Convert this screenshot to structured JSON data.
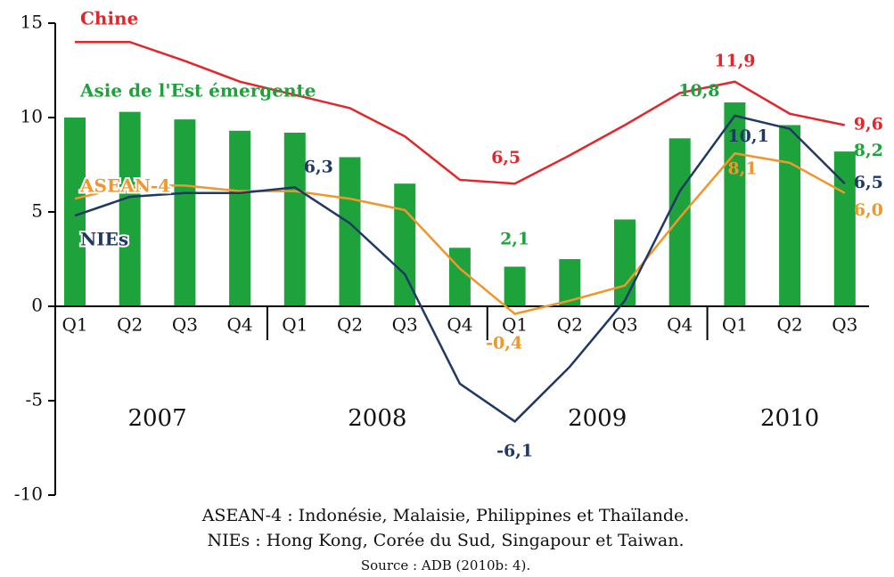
{
  "chart_data": {
    "type": "bar-line",
    "categories": [
      "Q1",
      "Q2",
      "Q3",
      "Q4",
      "Q1",
      "Q2",
      "Q3",
      "Q4",
      "Q1",
      "Q2",
      "Q3",
      "Q4",
      "Q1",
      "Q2",
      "Q3"
    ],
    "groups": [
      "2007",
      "2008",
      "2009",
      "2010"
    ],
    "ylim": [
      -10,
      15
    ],
    "yticks": [
      -10,
      -5,
      0,
      5,
      10,
      15
    ],
    "series": [
      {
        "name": "Asie de l'Est émergente",
        "type": "bar",
        "color": "#1ea23c",
        "values": [
          10.0,
          10.3,
          9.9,
          9.3,
          9.2,
          7.9,
          6.5,
          3.1,
          2.1,
          2.5,
          4.6,
          8.9,
          10.8,
          9.6,
          8.2
        ],
        "value_labels": [
          null,
          null,
          null,
          null,
          null,
          null,
          null,
          null,
          "2,1",
          null,
          null,
          null,
          "10,8",
          null,
          "8,2"
        ]
      },
      {
        "name": "Chine",
        "type": "line",
        "color": "#e3262b",
        "values": [
          14.0,
          14.0,
          13.0,
          11.9,
          11.2,
          10.5,
          9.0,
          6.7,
          6.5,
          8.0,
          9.6,
          11.3,
          11.9,
          10.2,
          9.6
        ],
        "value_labels": [
          null,
          null,
          null,
          null,
          null,
          null,
          null,
          null,
          "6,5",
          null,
          null,
          null,
          "11,9",
          null,
          "9,6"
        ]
      },
      {
        "name": "ASEAN-4",
        "type": "line",
        "color": "#f0962a",
        "values": [
          5.7,
          6.4,
          6.4,
          6.1,
          6.1,
          5.7,
          5.1,
          2.0,
          -0.4,
          0.3,
          1.1,
          4.7,
          8.1,
          7.6,
          6.0
        ],
        "value_labels": [
          null,
          null,
          null,
          null,
          null,
          null,
          null,
          null,
          "-0,4",
          null,
          null,
          null,
          "8,1",
          null,
          "6,0"
        ]
      },
      {
        "name": "NIEs",
        "type": "line",
        "color": "#1f3864",
        "values": [
          4.8,
          5.8,
          6.0,
          6.0,
          6.3,
          4.4,
          1.7,
          -4.1,
          -6.1,
          -3.2,
          0.3,
          6.1,
          10.1,
          9.4,
          6.5
        ],
        "value_labels": [
          null,
          null,
          null,
          null,
          "6,3",
          null,
          null,
          null,
          "-6,1",
          null,
          null,
          null,
          "10,1",
          null,
          "6,5"
        ]
      }
    ],
    "notes": [
      "ASEAN-4 : Indonésie, Malaisie, Philippines et Thaïlande.",
      "NIEs : Hong Kong, Corée du Sud, Singapour et Taiwan."
    ],
    "source": "Source : ADB (2010b: 4)."
  }
}
